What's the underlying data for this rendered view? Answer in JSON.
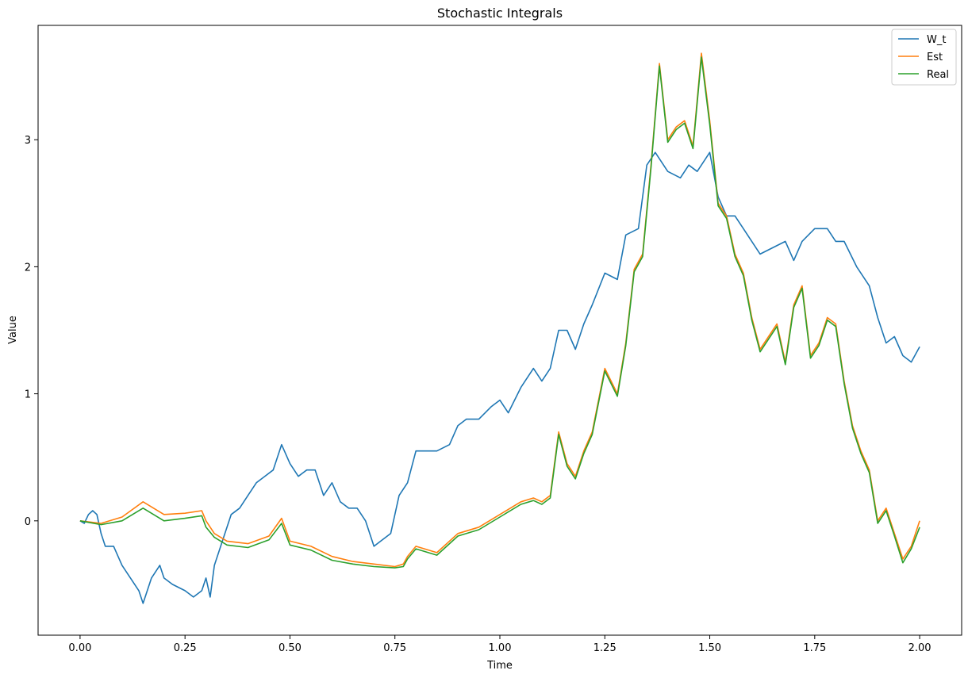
{
  "chart_data": {
    "type": "line",
    "title": "Stochastic Integrals",
    "xlabel": "Time",
    "ylabel": "Value",
    "xlim": [
      -0.1,
      2.1
    ],
    "ylim": [
      -0.9,
      3.9
    ],
    "xticks": [
      0.0,
      0.25,
      0.5,
      0.75,
      1.0,
      1.25,
      1.5,
      1.75,
      2.0
    ],
    "xtick_labels": [
      "0.00",
      "0.25",
      "0.50",
      "0.75",
      "1.00",
      "1.25",
      "1.50",
      "1.75",
      "2.00"
    ],
    "yticks": [
      0,
      1,
      2,
      3
    ],
    "ytick_labels": [
      "0",
      "1",
      "2",
      "3"
    ],
    "grid": false,
    "legend_position": "top-right",
    "series": [
      {
        "name": "W_t",
        "color": "#1f77b4",
        "x": [
          0.0,
          0.01,
          0.02,
          0.03,
          0.04,
          0.05,
          0.06,
          0.08,
          0.1,
          0.12,
          0.14,
          0.15,
          0.17,
          0.19,
          0.2,
          0.22,
          0.25,
          0.27,
          0.29,
          0.3,
          0.31,
          0.32,
          0.34,
          0.36,
          0.38,
          0.4,
          0.42,
          0.44,
          0.46,
          0.48,
          0.5,
          0.52,
          0.54,
          0.56,
          0.58,
          0.6,
          0.62,
          0.64,
          0.66,
          0.68,
          0.7,
          0.72,
          0.74,
          0.76,
          0.78,
          0.8,
          0.82,
          0.85,
          0.88,
          0.9,
          0.92,
          0.95,
          0.98,
          1.0,
          1.02,
          1.05,
          1.08,
          1.1,
          1.12,
          1.14,
          1.16,
          1.18,
          1.2,
          1.22,
          1.25,
          1.28,
          1.3,
          1.33,
          1.35,
          1.37,
          1.4,
          1.43,
          1.45,
          1.47,
          1.5,
          1.52,
          1.54,
          1.56,
          1.58,
          1.6,
          1.62,
          1.65,
          1.68,
          1.7,
          1.72,
          1.75,
          1.78,
          1.8,
          1.82,
          1.85,
          1.88,
          1.9,
          1.92,
          1.94,
          1.96,
          1.98,
          2.0
        ],
        "y": [
          0.0,
          -0.02,
          0.05,
          0.08,
          0.05,
          -0.1,
          -0.2,
          -0.2,
          -0.35,
          -0.45,
          -0.55,
          -0.65,
          -0.45,
          -0.35,
          -0.45,
          -0.5,
          -0.55,
          -0.6,
          -0.55,
          -0.45,
          -0.6,
          -0.35,
          -0.15,
          0.05,
          0.1,
          0.2,
          0.3,
          0.35,
          0.4,
          0.6,
          0.45,
          0.35,
          0.4,
          0.4,
          0.2,
          0.3,
          0.15,
          0.1,
          0.1,
          0.0,
          -0.2,
          -0.15,
          -0.1,
          0.2,
          0.3,
          0.55,
          0.55,
          0.55,
          0.6,
          0.75,
          0.8,
          0.8,
          0.9,
          0.95,
          0.85,
          1.05,
          1.2,
          1.1,
          1.2,
          1.5,
          1.5,
          1.35,
          1.55,
          1.7,
          1.95,
          1.9,
          2.25,
          2.3,
          2.8,
          2.9,
          2.75,
          2.7,
          2.8,
          2.75,
          2.9,
          2.55,
          2.4,
          2.4,
          2.3,
          2.2,
          2.1,
          2.15,
          2.2,
          2.05,
          2.2,
          2.3,
          2.3,
          2.2,
          2.2,
          2.0,
          1.85,
          1.6,
          1.4,
          1.45,
          1.3,
          1.25,
          1.37
        ]
      },
      {
        "name": "Est",
        "color": "#ff7f0e",
        "x": [
          0.0,
          0.05,
          0.1,
          0.15,
          0.2,
          0.25,
          0.29,
          0.3,
          0.32,
          0.35,
          0.4,
          0.45,
          0.48,
          0.5,
          0.55,
          0.6,
          0.65,
          0.7,
          0.75,
          0.77,
          0.78,
          0.8,
          0.85,
          0.9,
          0.95,
          1.0,
          1.05,
          1.08,
          1.1,
          1.12,
          1.14,
          1.16,
          1.18,
          1.2,
          1.22,
          1.25,
          1.28,
          1.3,
          1.32,
          1.34,
          1.36,
          1.38,
          1.4,
          1.42,
          1.44,
          1.46,
          1.48,
          1.5,
          1.52,
          1.54,
          1.56,
          1.58,
          1.6,
          1.62,
          1.64,
          1.66,
          1.68,
          1.7,
          1.72,
          1.74,
          1.76,
          1.78,
          1.8,
          1.82,
          1.84,
          1.86,
          1.88,
          1.9,
          1.92,
          1.94,
          1.96,
          1.98,
          2.0
        ],
        "y": [
          0.0,
          -0.02,
          0.03,
          0.15,
          0.05,
          0.06,
          0.08,
          0.0,
          -0.1,
          -0.16,
          -0.18,
          -0.12,
          0.02,
          -0.16,
          -0.2,
          -0.28,
          -0.32,
          -0.34,
          -0.36,
          -0.34,
          -0.28,
          -0.2,
          -0.25,
          -0.1,
          -0.05,
          0.05,
          0.15,
          0.18,
          0.15,
          0.2,
          0.7,
          0.45,
          0.35,
          0.55,
          0.7,
          1.2,
          1.0,
          1.4,
          1.98,
          2.1,
          2.8,
          3.6,
          3.0,
          3.1,
          3.15,
          2.95,
          3.68,
          3.15,
          2.5,
          2.4,
          2.1,
          1.95,
          1.6,
          1.35,
          1.45,
          1.55,
          1.25,
          1.7,
          1.85,
          1.3,
          1.4,
          1.6,
          1.55,
          1.1,
          0.75,
          0.55,
          0.4,
          0.0,
          0.1,
          -0.1,
          -0.3,
          -0.2,
          0.0
        ]
      },
      {
        "name": "Real",
        "color": "#2ca02c",
        "x": [
          0.0,
          0.05,
          0.1,
          0.15,
          0.2,
          0.25,
          0.29,
          0.3,
          0.32,
          0.35,
          0.4,
          0.45,
          0.48,
          0.5,
          0.55,
          0.6,
          0.65,
          0.7,
          0.75,
          0.77,
          0.78,
          0.8,
          0.85,
          0.9,
          0.95,
          1.0,
          1.05,
          1.08,
          1.1,
          1.12,
          1.14,
          1.16,
          1.18,
          1.2,
          1.22,
          1.25,
          1.28,
          1.3,
          1.32,
          1.34,
          1.36,
          1.38,
          1.4,
          1.42,
          1.44,
          1.46,
          1.48,
          1.5,
          1.52,
          1.54,
          1.56,
          1.58,
          1.6,
          1.62,
          1.64,
          1.66,
          1.68,
          1.7,
          1.72,
          1.74,
          1.76,
          1.78,
          1.8,
          1.82,
          1.84,
          1.86,
          1.88,
          1.9,
          1.92,
          1.94,
          1.96,
          1.98,
          2.0
        ],
        "y": [
          0.0,
          -0.03,
          0.0,
          0.1,
          0.0,
          0.02,
          0.04,
          -0.05,
          -0.13,
          -0.19,
          -0.21,
          -0.15,
          -0.02,
          -0.19,
          -0.23,
          -0.31,
          -0.34,
          -0.36,
          -0.37,
          -0.36,
          -0.3,
          -0.22,
          -0.27,
          -0.12,
          -0.07,
          0.03,
          0.13,
          0.16,
          0.13,
          0.18,
          0.68,
          0.43,
          0.33,
          0.53,
          0.68,
          1.18,
          0.98,
          1.38,
          1.96,
          2.08,
          2.78,
          3.58,
          2.98,
          3.08,
          3.13,
          2.93,
          3.65,
          3.12,
          2.48,
          2.38,
          2.08,
          1.93,
          1.58,
          1.33,
          1.43,
          1.53,
          1.23,
          1.68,
          1.83,
          1.28,
          1.38,
          1.58,
          1.53,
          1.08,
          0.73,
          0.53,
          0.38,
          -0.02,
          0.08,
          -0.12,
          -0.33,
          -0.22,
          -0.05
        ]
      }
    ]
  }
}
